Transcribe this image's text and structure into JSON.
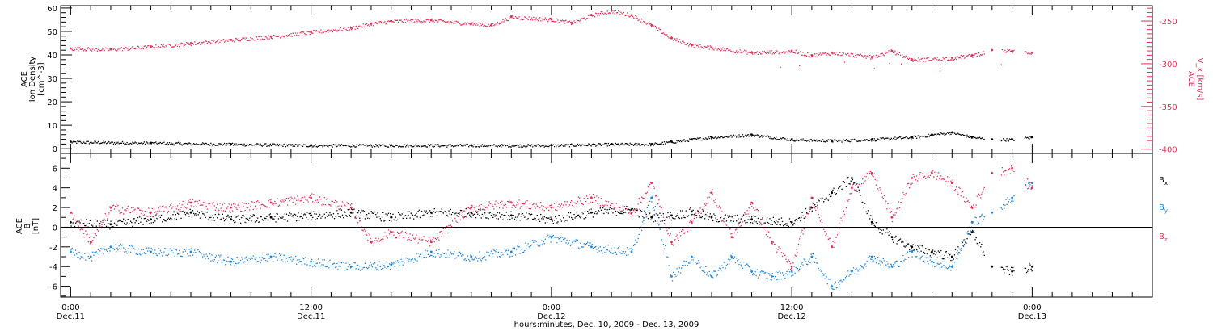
{
  "xaxis": {
    "caption": "hours:minutes, Dec. 10, 2009 - Dec. 13, 2009",
    "range_hours": [
      -0.5,
      54.0
    ],
    "major_ticks": [
      {
        "t": 0,
        "time": "0:00",
        "date": "Dec.11"
      },
      {
        "t": 12,
        "time": "12:00",
        "date": "Dec.11"
      },
      {
        "t": 24,
        "time": "0:00",
        "date": "Dec.12"
      },
      {
        "t": 36,
        "time": "12:00",
        "date": "Dec.12"
      },
      {
        "t": 48,
        "time": "0:00",
        "date": "Dec.13"
      }
    ]
  },
  "colors": {
    "black": "#000000",
    "red": "#e0305a",
    "blue": "#1a86d8"
  },
  "chart_data": [
    {
      "type": "scatter",
      "name": "top-panel",
      "left_axis": {
        "label_lines": [
          "ACE",
          "Ion Density",
          "[cm^-3]"
        ],
        "range": [
          -2,
          61
        ],
        "ticks": [
          0,
          10,
          20,
          30,
          40,
          50,
          60
        ]
      },
      "right_axis": {
        "label_lines": [
          "ACE",
          "V_x [km/s]"
        ],
        "range": [
          -405,
          -232
        ],
        "ticks": [
          -250,
          -300,
          -350,
          -400
        ]
      },
      "series": [
        {
          "color_key": "black",
          "axis": "left",
          "x_hours": [
            0,
            4,
            8,
            12,
            16,
            20,
            24,
            27,
            29,
            30,
            31,
            32,
            34,
            36,
            38,
            40,
            42,
            43,
            44,
            45,
            46,
            47,
            48
          ],
          "values": [
            3,
            2.5,
            2,
            1.5,
            1.5,
            1.5,
            1.5,
            2,
            2,
            3,
            4,
            5,
            6,
            4,
            3.5,
            4,
            5,
            6,
            7,
            5,
            4,
            4,
            5
          ]
        },
        {
          "color_key": "red",
          "axis": "right",
          "x_hours": [
            0,
            2,
            4,
            6,
            8,
            10,
            12,
            14,
            15,
            16,
            18,
            20,
            21,
            22,
            24,
            25,
            26,
            27,
            28,
            29,
            30,
            31,
            32,
            34,
            36,
            37,
            38,
            40,
            41,
            42,
            44,
            45,
            46,
            47,
            48
          ],
          "values": [
            -282,
            -283,
            -280,
            -276,
            -272,
            -268,
            -263,
            -258,
            -253,
            -250,
            -249,
            -253,
            -255,
            -245,
            -248,
            -252,
            -243,
            -238,
            -243,
            -255,
            -270,
            -278,
            -281,
            -287,
            -285,
            -290,
            -287,
            -292,
            -285,
            -295,
            -293,
            -290,
            -284,
            -285,
            -287
          ]
        }
      ]
    },
    {
      "type": "scatter",
      "name": "bottom-panel",
      "left_axis": {
        "label_lines": [
          "ACE",
          "B",
          "[nT]"
        ],
        "range": [
          -7.1,
          7.5
        ],
        "ticks": [
          -6,
          -4,
          -2,
          0,
          2,
          4,
          6
        ]
      },
      "legend": [
        {
          "label": "B_x",
          "color_key": "black"
        },
        {
          "label": "B_y",
          "color_key": "blue"
        },
        {
          "label": "B_z",
          "color_key": "red"
        }
      ],
      "series": [
        {
          "color_key": "black",
          "label": "B_x",
          "x_hours": [
            0,
            2,
            4,
            6,
            8,
            10,
            12,
            14,
            16,
            18,
            20,
            22,
            24,
            26,
            28,
            29,
            30,
            31,
            32,
            34,
            36,
            37,
            38,
            39,
            40,
            41,
            42,
            43,
            44,
            45,
            46,
            47,
            48
          ],
          "values": [
            0.5,
            0.3,
            0.8,
            1.5,
            0.8,
            1.0,
            1.2,
            1.5,
            1.0,
            1.5,
            1.5,
            1.2,
            0.8,
            1.5,
            1.8,
            1.0,
            1.2,
            1.6,
            1.0,
            0.8,
            0.5,
            2.0,
            3.5,
            5.0,
            0.5,
            -1.0,
            -2.0,
            -2.5,
            -3.0,
            -0.5,
            -4.0,
            -4.5,
            -4.0
          ]
        },
        {
          "color_key": "blue",
          "label": "B_y",
          "x_hours": [
            0,
            1,
            2,
            4,
            6,
            8,
            10,
            12,
            14,
            16,
            18,
            20,
            22,
            24,
            26,
            28,
            29,
            30,
            31,
            32,
            33,
            34,
            35,
            36,
            37,
            38,
            39,
            40,
            41,
            42,
            43,
            44,
            45,
            46,
            47,
            48
          ],
          "values": [
            -2.5,
            -3.0,
            -2.0,
            -2.5,
            -2.5,
            -3.5,
            -3.0,
            -3.5,
            -4.0,
            -3.8,
            -2.5,
            -3.0,
            -2.5,
            -1.0,
            -2.0,
            -2.5,
            3.0,
            -5.0,
            -3.0,
            -5.0,
            -3.0,
            -4.5,
            -5.0,
            -4.5,
            -3.0,
            -6.0,
            -4.5,
            -3.0,
            -4.0,
            -2.5,
            -3.5,
            -4.0,
            0.5,
            1.5,
            3.0,
            4.5
          ]
        },
        {
          "color_key": "red",
          "label": "B_z",
          "x_hours": [
            0,
            1,
            2,
            4,
            6,
            8,
            10,
            12,
            14,
            15,
            16,
            18,
            20,
            22,
            24,
            26,
            28,
            29,
            30,
            31,
            32,
            33,
            34,
            35,
            36,
            37,
            38,
            39,
            40,
            41,
            42,
            43,
            44,
            45,
            46,
            47,
            48
          ],
          "values": [
            1.5,
            -1.5,
            2.0,
            1.5,
            2.5,
            2.0,
            2.5,
            3.0,
            2.0,
            -1.5,
            -0.5,
            -1.5,
            2.0,
            2.5,
            2.0,
            3.0,
            1.5,
            4.5,
            -1.5,
            0.5,
            3.5,
            -1.0,
            2.5,
            -1.5,
            -4.0,
            3.0,
            -2.0,
            4.0,
            5.5,
            1.0,
            5.0,
            5.5,
            4.5,
            2.0,
            5.5,
            6.0,
            4.0
          ]
        }
      ]
    }
  ]
}
